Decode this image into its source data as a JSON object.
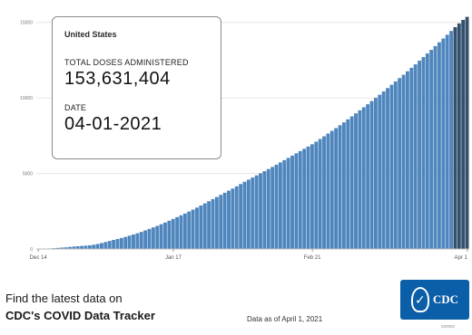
{
  "chart_data": {
    "type": "bar",
    "title": "",
    "xlabel": "",
    "ylabel": "",
    "x_tick_labels": [
      "Dec 14",
      "Jan 17",
      "Feb 21",
      "Apr 1"
    ],
    "y_tick_labels": [
      "0",
      "5000",
      "10000",
      "15000"
    ],
    "ylim": [
      0,
      160000000
    ],
    "grid": true,
    "legend": "none",
    "start_date": "2020-12-14",
    "end_date": "2021-04-01",
    "cumulative_doses_millions": [
      0.03,
      0.09,
      0.19,
      0.35,
      0.53,
      0.71,
      0.92,
      1.12,
      1.38,
      1.63,
      1.82,
      2.0,
      2.2,
      2.43,
      2.8,
      3.3,
      3.9,
      4.6,
      5.3,
      6.0,
      6.6,
      7.3,
      8.0,
      8.8,
      9.6,
      10.4,
      11.3,
      12.3,
      13.3,
      14.3,
      15.3,
      16.4,
      17.5,
      18.7,
      19.9,
      21.1,
      22.3,
      23.5,
      24.8,
      26.1,
      27.4,
      28.8,
      30.2,
      31.6,
      33.0,
      34.4,
      35.8,
      37.2,
      38.6,
      40.0,
      41.5,
      43.0,
      44.5,
      45.9,
      47.3,
      48.7,
      50.1,
      51.5,
      52.9,
      54.3,
      55.8,
      57.3,
      58.8,
      60.3,
      61.8,
      63.3,
      64.8,
      66.3,
      67.8,
      69.3,
      71.0,
      72.8,
      74.6,
      76.4,
      78.2,
      80.0,
      81.9,
      83.8,
      85.8,
      87.8,
      89.8,
      91.8,
      93.8,
      95.8,
      97.9,
      100.0,
      102.1,
      104.3,
      106.5,
      108.7,
      110.9,
      113.1,
      115.3,
      117.6,
      119.9,
      122.2,
      124.6,
      127.0,
      129.4,
      131.8,
      134.3,
      136.8,
      139.3,
      141.8,
      144.3,
      146.8,
      149.3,
      151.6,
      153.63
    ],
    "colors": {
      "bars": "#4f86bd",
      "last_bar": "#34506e",
      "grid": "#e6e6e6"
    }
  },
  "info_box": {
    "location": "United States",
    "doses_label": "TOTAL DOSES ADMINISTERED",
    "doses_value": "153,631,404",
    "date_label": "DATE",
    "date_value": "04-01-2021"
  },
  "footer": {
    "line1": "Find the latest data on",
    "line2": "CDC's COVID Data Tracker",
    "as_of": "Data as of April 1, 2021",
    "logo_text": "CDC",
    "code": "xxxxxx"
  }
}
